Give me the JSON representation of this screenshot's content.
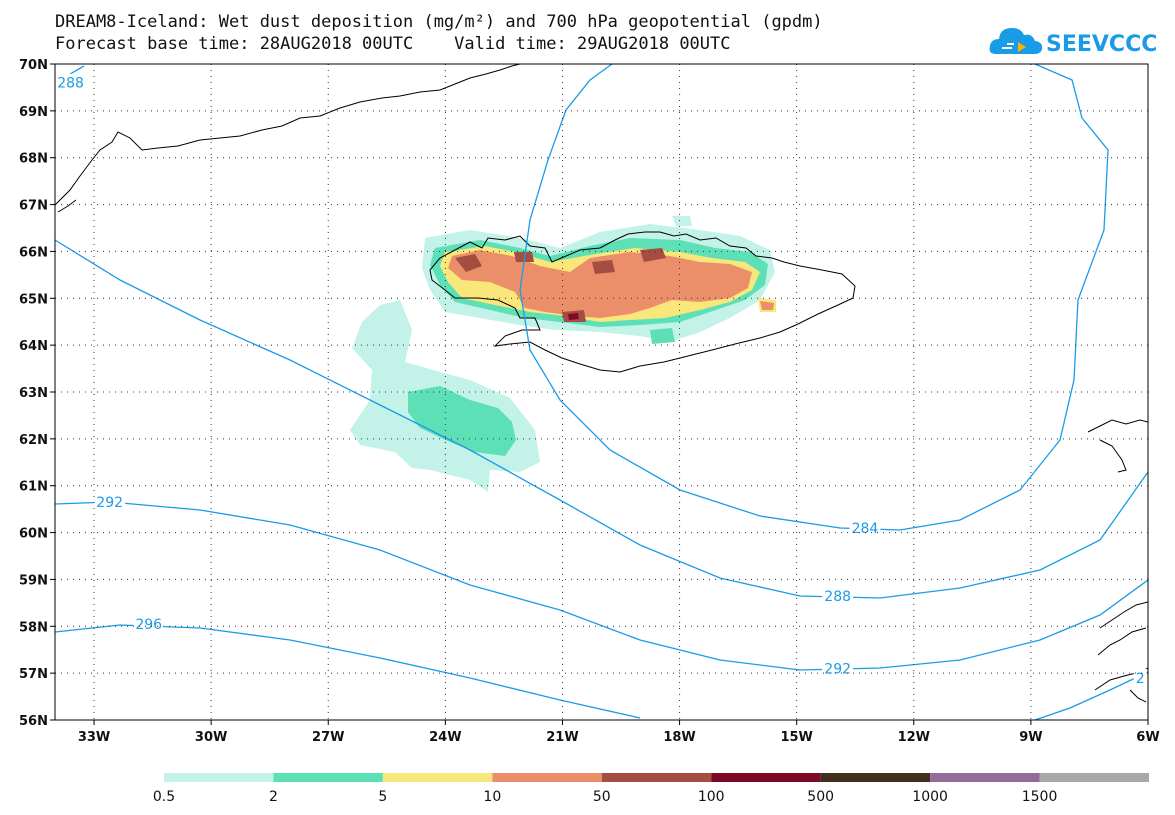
{
  "header": {
    "title_line1": "DREAM8-Iceland: Wet dust deposition (mg/m²) and 700 hPa geopotential (gpdm)",
    "title_line2": "Forecast base time: 28AUG2018 00UTC    Valid time: 29AUG2018 00UTC",
    "logo_text": "SEEVCCC"
  },
  "colors": {
    "contour": "#1a9be8",
    "coast": "#000000",
    "logo": "#1a9be8"
  },
  "map": {
    "lon_range": [
      -34.0,
      -6.0
    ],
    "lat_range": [
      56.0,
      70.0
    ],
    "lon_ticks": [
      {
        "value": -33,
        "label": "33W"
      },
      {
        "value": -30,
        "label": "30W"
      },
      {
        "value": -27,
        "label": "27W"
      },
      {
        "value": -24,
        "label": "24W"
      },
      {
        "value": -21,
        "label": "21W"
      },
      {
        "value": -18,
        "label": "18W"
      },
      {
        "value": -15,
        "label": "15W"
      },
      {
        "value": -12,
        "label": "12W"
      },
      {
        "value": -9,
        "label": "9W"
      },
      {
        "value": -6,
        "label": "6W"
      }
    ],
    "lat_ticks": [
      {
        "value": 56,
        "label": "56N"
      },
      {
        "value": 57,
        "label": "57N"
      },
      {
        "value": 58,
        "label": "58N"
      },
      {
        "value": 59,
        "label": "59N"
      },
      {
        "value": 60,
        "label": "60N"
      },
      {
        "value": 61,
        "label": "61N"
      },
      {
        "value": 62,
        "label": "62N"
      },
      {
        "value": 63,
        "label": "63N"
      },
      {
        "value": 64,
        "label": "64N"
      },
      {
        "value": 65,
        "label": "65N"
      },
      {
        "value": 66,
        "label": "66N"
      },
      {
        "value": 67,
        "label": "67N"
      },
      {
        "value": 68,
        "label": "68N"
      },
      {
        "value": 69,
        "label": "69N"
      },
      {
        "value": 70,
        "label": "70N"
      }
    ],
    "contour_labels": [
      {
        "text": "288",
        "lon": -33.6,
        "lat": 69.6
      },
      {
        "text": "292",
        "lon": -32.6,
        "lat": 60.65
      },
      {
        "text": "296",
        "lon": -31.6,
        "lat": 58.05
      },
      {
        "text": "284",
        "lon": -13.25,
        "lat": 60.1
      },
      {
        "text": "288",
        "lon": -13.95,
        "lat": 58.65
      },
      {
        "text": "292",
        "lon": -13.95,
        "lat": 57.1
      },
      {
        "text": "2",
        "lon": -6.2,
        "lat": 56.9
      }
    ]
  },
  "legend": {
    "bins": [
      {
        "color": "#c2f2e8",
        "label": "0.5"
      },
      {
        "color": "#5ee0b6",
        "label": "2"
      },
      {
        "color": "#f9e77c",
        "label": "5"
      },
      {
        "color": "#ea8f69",
        "label": "10"
      },
      {
        "color": "#a44d40",
        "label": "50"
      },
      {
        "color": "#7c0a26",
        "label": "100"
      },
      {
        "color": "#3f2f1c",
        "label": "500"
      },
      {
        "color": "#966a9b",
        "label": "1000"
      },
      {
        "color": "#a8a8a8",
        "label": "1500"
      }
    ]
  }
}
